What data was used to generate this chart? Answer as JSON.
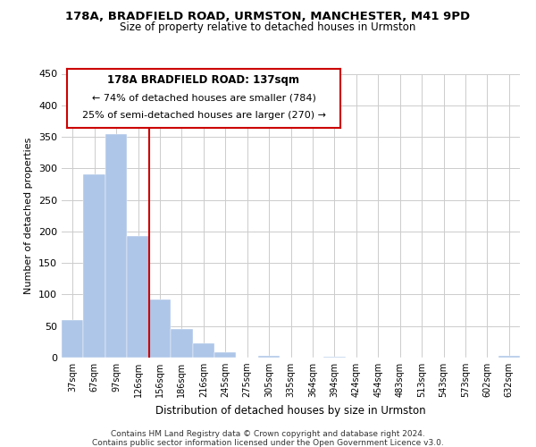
{
  "title1": "178A, BRADFIELD ROAD, URMSTON, MANCHESTER, M41 9PD",
  "title2": "Size of property relative to detached houses in Urmston",
  "xlabel": "Distribution of detached houses by size in Urmston",
  "ylabel": "Number of detached properties",
  "categories": [
    "37sqm",
    "67sqm",
    "97sqm",
    "126sqm",
    "156sqm",
    "186sqm",
    "216sqm",
    "245sqm",
    "275sqm",
    "305sqm",
    "335sqm",
    "364sqm",
    "394sqm",
    "424sqm",
    "454sqm",
    "483sqm",
    "513sqm",
    "543sqm",
    "573sqm",
    "602sqm",
    "632sqm"
  ],
  "values": [
    60,
    290,
    355,
    193,
    92,
    46,
    22,
    8,
    0,
    3,
    0,
    0,
    2,
    0,
    0,
    0,
    0,
    0,
    0,
    0,
    3
  ],
  "bar_color": "#aec6e8",
  "marker_color": "#cc0000",
  "annotation_title": "178A BRADFIELD ROAD: 137sqm",
  "annotation_line1": "← 74% of detached houses are smaller (784)",
  "annotation_line2": "25% of semi-detached houses are larger (270) →",
  "ylim": [
    0,
    450
  ],
  "yticks": [
    0,
    50,
    100,
    150,
    200,
    250,
    300,
    350,
    400,
    450
  ],
  "footer1": "Contains HM Land Registry data © Crown copyright and database right 2024.",
  "footer2": "Contains public sector information licensed under the Open Government Licence v3.0.",
  "bg_color": "#ffffff",
  "grid_color": "#cccccc"
}
